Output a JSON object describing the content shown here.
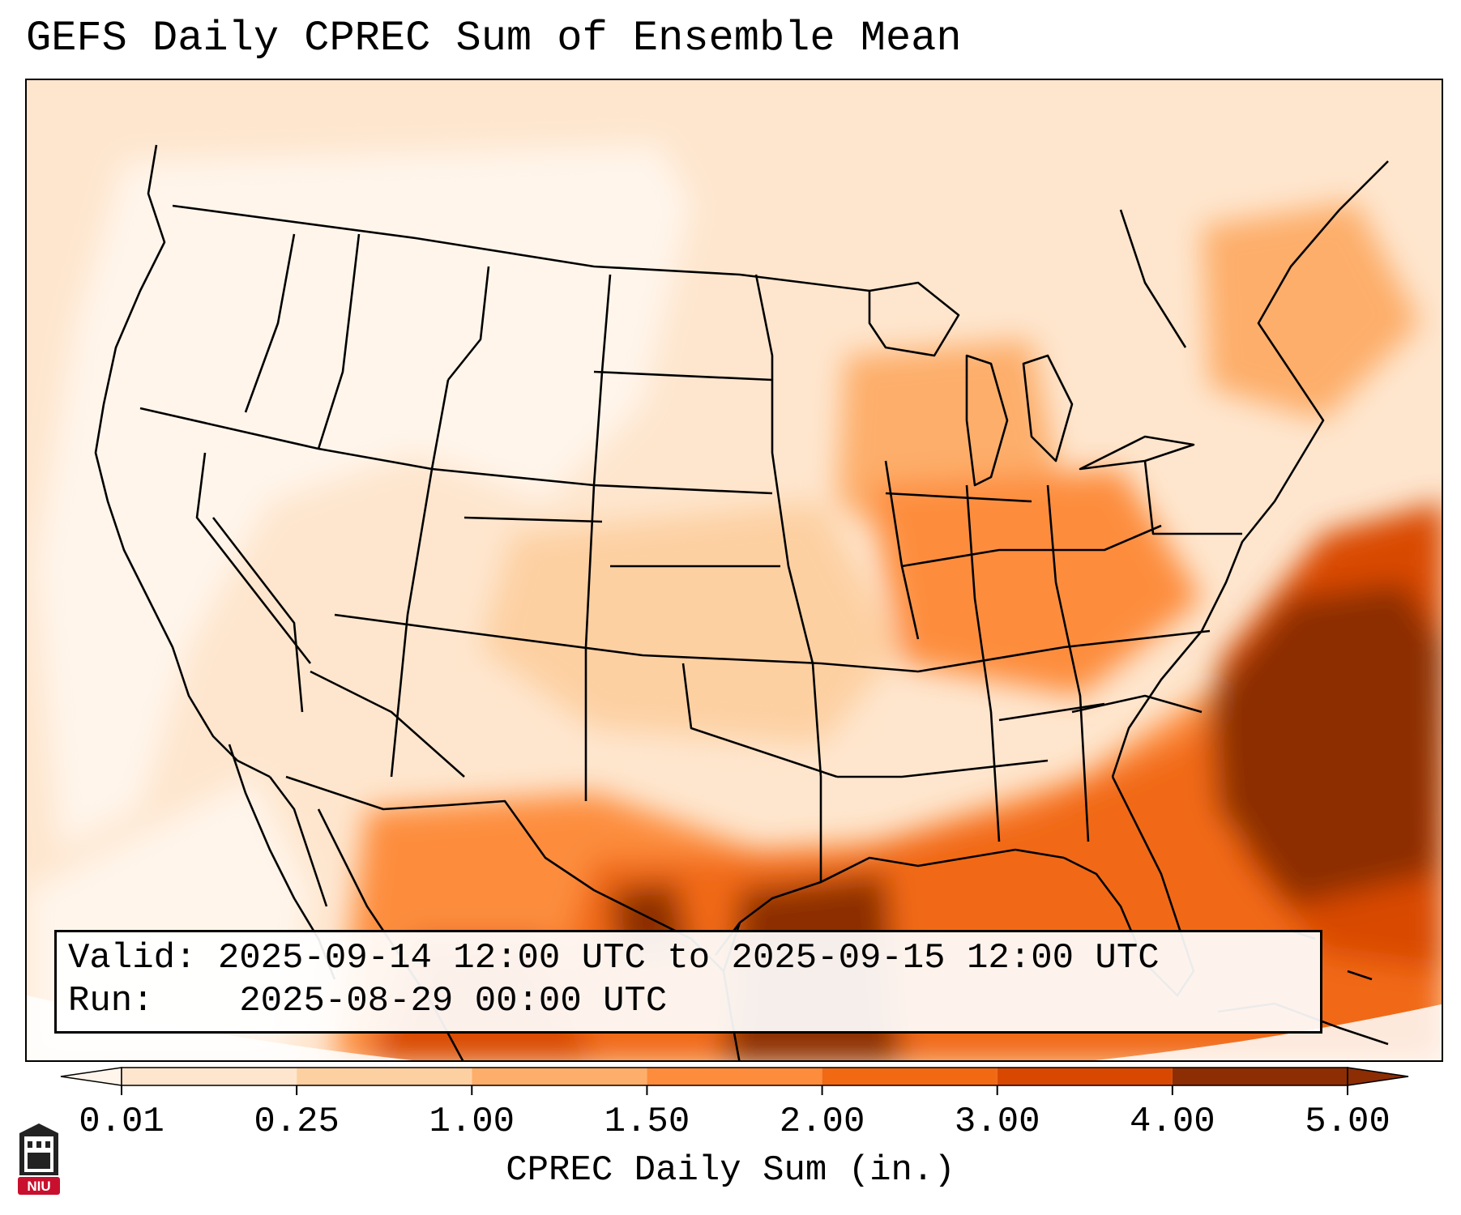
{
  "title": "GEFS Daily CPREC Sum of Ensemble Mean",
  "info": {
    "valid_label": "Valid:",
    "valid_value": "2025-09-14 12:00 UTC to 2025-09-15 12:00 UTC",
    "run_label": "Run:",
    "run_value": "2025-08-29 00:00 UTC"
  },
  "colorbar": {
    "label": "CPREC Daily Sum (in.)",
    "ticks": [
      "0.01",
      "0.25",
      "1.00",
      "1.50",
      "2.00",
      "3.00",
      "4.00",
      "5.00"
    ],
    "colors": [
      "#fff5eb",
      "#fee6ce",
      "#fdd0a2",
      "#fdae6b",
      "#fd8d3c",
      "#f16913",
      "#d94801",
      "#8c2d04"
    ],
    "extend": "both"
  },
  "logo": {
    "text": "NIU",
    "color": "#c8102e"
  }
}
